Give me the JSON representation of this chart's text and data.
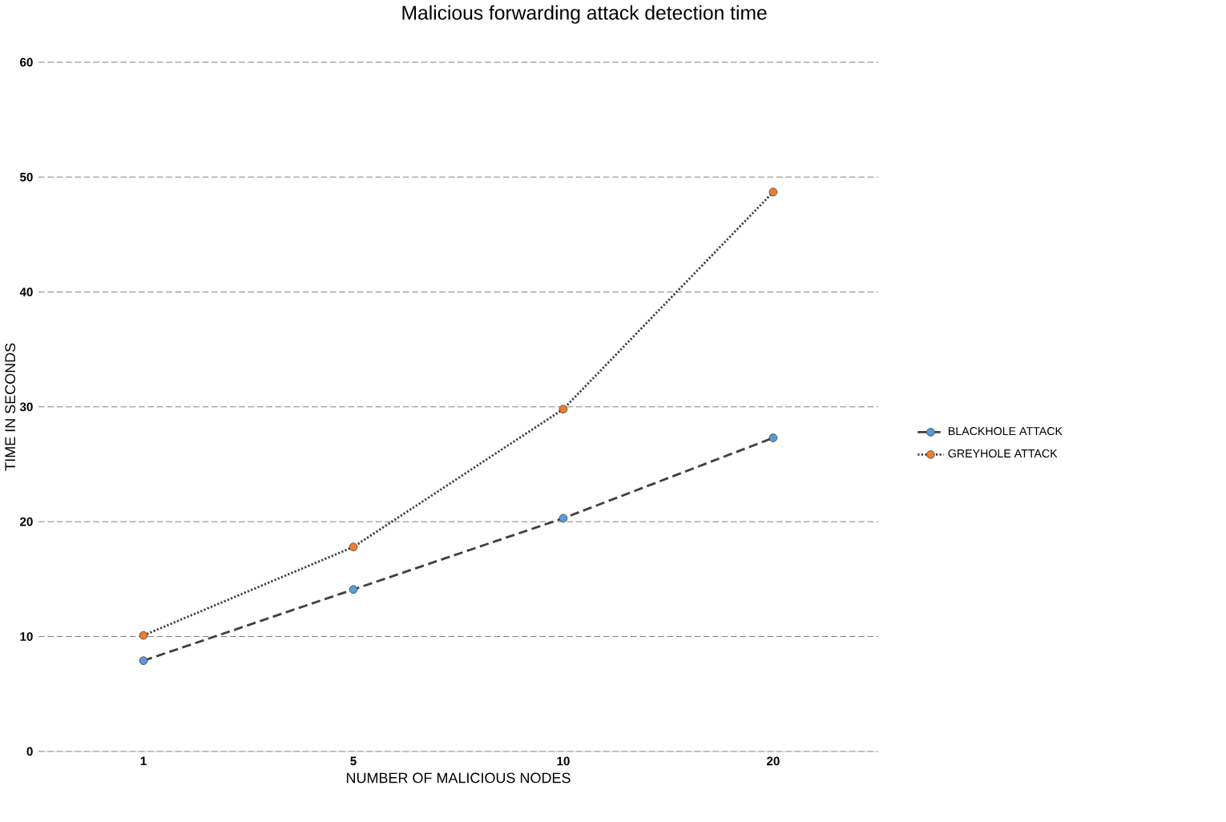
{
  "chart_data": {
    "type": "line",
    "title": "Malicious forwarding attack detection time",
    "xlabel": "NUMBER OF MALICIOUS NODES",
    "ylabel": "TIME IN SECONDS",
    "categories": [
      "1",
      "5",
      "10",
      "20"
    ],
    "series": [
      {
        "name": "BLACKHOLE ATTACK",
        "color": "#5b9bd5",
        "line_style": "dashed",
        "values": [
          7.9,
          14.1,
          20.3,
          27.3
        ]
      },
      {
        "name": "GREYHOLE ATTACK",
        "color": "#ed7d31",
        "line_style": "dotted",
        "values": [
          10.1,
          17.8,
          29.8,
          48.7
        ]
      }
    ],
    "ylim": [
      0,
      60
    ],
    "yticks": [
      0,
      10,
      20,
      30,
      40,
      50,
      60
    ],
    "grid": "y",
    "legend": "right",
    "marker": "circle"
  }
}
